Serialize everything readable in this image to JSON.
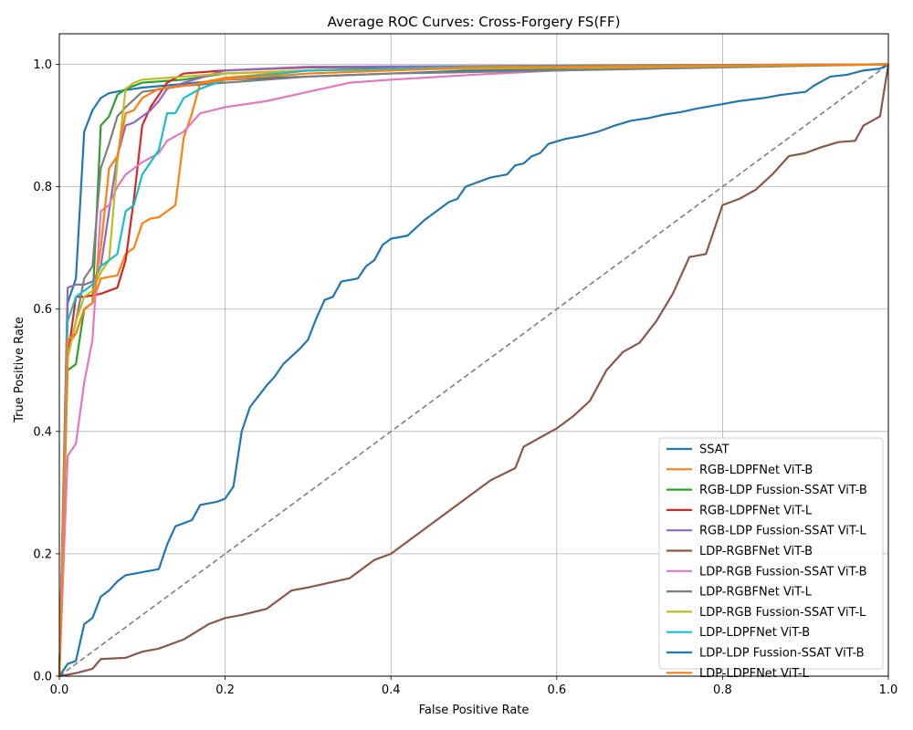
{
  "chart_data": {
    "type": "line",
    "title": "Average ROC Curves: Cross-Forgery FS(FF)",
    "xlabel": "False Positive Rate",
    "ylabel": "True Positive Rate",
    "xlim": [
      0,
      1
    ],
    "ylim": [
      0,
      1.05
    ],
    "xticks": [
      "0.0",
      "0.2",
      "0.4",
      "0.6",
      "0.8",
      "1.0"
    ],
    "yticks": [
      "0.0",
      "0.2",
      "0.4",
      "0.6",
      "0.8",
      "1.0"
    ],
    "grid": true,
    "legend_position": "bottom-right",
    "diagonal": {
      "color": "#7f7f7f",
      "style": "dashed"
    },
    "series": [
      {
        "name": "SSAT",
        "color": "#1f77b4",
        "points": [
          [
            0,
            0
          ],
          [
            0.01,
            0.61
          ],
          [
            0.02,
            0.65
          ],
          [
            0.03,
            0.89
          ],
          [
            0.04,
            0.925
          ],
          [
            0.05,
            0.945
          ],
          [
            0.06,
            0.953
          ],
          [
            0.08,
            0.958
          ],
          [
            0.1,
            0.962
          ],
          [
            0.15,
            0.968
          ],
          [
            0.2,
            0.975
          ],
          [
            0.3,
            0.98
          ],
          [
            0.4,
            0.985
          ],
          [
            0.5,
            0.99
          ],
          [
            0.6,
            0.993
          ],
          [
            0.8,
            0.997
          ],
          [
            1.0,
            1.0
          ]
        ]
      },
      {
        "name": "RGB-LDPFNet ViT-B",
        "color": "#ff7f0e",
        "points": [
          [
            0,
            0
          ],
          [
            0.01,
            0.54
          ],
          [
            0.02,
            0.56
          ],
          [
            0.03,
            0.6
          ],
          [
            0.04,
            0.61
          ],
          [
            0.05,
            0.65
          ],
          [
            0.07,
            0.655
          ],
          [
            0.08,
            0.69
          ],
          [
            0.09,
            0.7
          ],
          [
            0.1,
            0.74
          ],
          [
            0.11,
            0.748
          ],
          [
            0.12,
            0.75
          ],
          [
            0.14,
            0.77
          ],
          [
            0.15,
            0.88
          ],
          [
            0.16,
            0.92
          ],
          [
            0.17,
            0.97
          ],
          [
            0.2,
            0.978
          ],
          [
            0.3,
            0.99
          ],
          [
            0.5,
            0.997
          ],
          [
            0.7,
            0.999
          ],
          [
            1.0,
            1.0
          ]
        ]
      },
      {
        "name": "RGB-LDP Fussion-SSAT ViT-B",
        "color": "#2ca02c",
        "points": [
          [
            0,
            0
          ],
          [
            0.01,
            0.5
          ],
          [
            0.02,
            0.51
          ],
          [
            0.03,
            0.6
          ],
          [
            0.04,
            0.61
          ],
          [
            0.05,
            0.9
          ],
          [
            0.06,
            0.915
          ],
          [
            0.07,
            0.95
          ],
          [
            0.08,
            0.96
          ],
          [
            0.1,
            0.97
          ],
          [
            0.15,
            0.975
          ],
          [
            0.2,
            0.985
          ],
          [
            0.3,
            0.99
          ],
          [
            0.5,
            0.996
          ],
          [
            1.0,
            1.0
          ]
        ]
      },
      {
        "name": "RGB-LDPFNet ViT-L",
        "color": "#d62728",
        "points": [
          [
            0,
            0
          ],
          [
            0.01,
            0.52
          ],
          [
            0.02,
            0.62
          ],
          [
            0.03,
            0.62
          ],
          [
            0.05,
            0.625
          ],
          [
            0.07,
            0.635
          ],
          [
            0.08,
            0.68
          ],
          [
            0.09,
            0.78
          ],
          [
            0.1,
            0.9
          ],
          [
            0.11,
            0.93
          ],
          [
            0.12,
            0.95
          ],
          [
            0.13,
            0.97
          ],
          [
            0.15,
            0.985
          ],
          [
            0.2,
            0.99
          ],
          [
            0.3,
            0.995
          ],
          [
            1.0,
            1.0
          ]
        ]
      },
      {
        "name": "RGB-LDP Fussion-SSAT ViT-L",
        "color": "#9467bd",
        "points": [
          [
            0,
            0
          ],
          [
            0.01,
            0.635
          ],
          [
            0.02,
            0.64
          ],
          [
            0.03,
            0.64
          ],
          [
            0.04,
            0.645
          ],
          [
            0.05,
            0.67
          ],
          [
            0.07,
            0.85
          ],
          [
            0.08,
            0.9
          ],
          [
            0.09,
            0.905
          ],
          [
            0.1,
            0.915
          ],
          [
            0.11,
            0.925
          ],
          [
            0.12,
            0.94
          ],
          [
            0.13,
            0.96
          ],
          [
            0.15,
            0.97
          ],
          [
            0.2,
            0.99
          ],
          [
            0.3,
            0.996
          ],
          [
            1.0,
            1.0
          ]
        ]
      },
      {
        "name": "LDP-RGBFNet ViT-B",
        "color": "#8c564b",
        "points": [
          [
            0,
            0
          ],
          [
            0.02,
            0.005
          ],
          [
            0.04,
            0.012
          ],
          [
            0.05,
            0.028
          ],
          [
            0.08,
            0.03
          ],
          [
            0.1,
            0.04
          ],
          [
            0.12,
            0.045
          ],
          [
            0.15,
            0.06
          ],
          [
            0.18,
            0.085
          ],
          [
            0.2,
            0.095
          ],
          [
            0.22,
            0.1
          ],
          [
            0.25,
            0.11
          ],
          [
            0.28,
            0.14
          ],
          [
            0.3,
            0.145
          ],
          [
            0.35,
            0.16
          ],
          [
            0.38,
            0.19
          ],
          [
            0.4,
            0.2
          ],
          [
            0.42,
            0.22
          ],
          [
            0.45,
            0.25
          ],
          [
            0.5,
            0.3
          ],
          [
            0.52,
            0.32
          ],
          [
            0.55,
            0.34
          ],
          [
            0.56,
            0.375
          ],
          [
            0.58,
            0.39
          ],
          [
            0.6,
            0.405
          ],
          [
            0.62,
            0.425
          ],
          [
            0.64,
            0.45
          ],
          [
            0.66,
            0.5
          ],
          [
            0.68,
            0.53
          ],
          [
            0.7,
            0.545
          ],
          [
            0.72,
            0.58
          ],
          [
            0.74,
            0.625
          ],
          [
            0.76,
            0.685
          ],
          [
            0.78,
            0.69
          ],
          [
            0.8,
            0.77
          ],
          [
            0.82,
            0.78
          ],
          [
            0.84,
            0.795
          ],
          [
            0.86,
            0.82
          ],
          [
            0.88,
            0.85
          ],
          [
            0.9,
            0.855
          ],
          [
            0.92,
            0.865
          ],
          [
            0.94,
            0.873
          ],
          [
            0.96,
            0.875
          ],
          [
            0.97,
            0.9
          ],
          [
            0.99,
            0.915
          ],
          [
            1.0,
            1.0
          ]
        ]
      },
      {
        "name": "LDP-RGB Fussion-SSAT ViT-B",
        "color": "#e377c2",
        "points": [
          [
            0,
            0
          ],
          [
            0.01,
            0.36
          ],
          [
            0.02,
            0.38
          ],
          [
            0.03,
            0.48
          ],
          [
            0.04,
            0.55
          ],
          [
            0.05,
            0.76
          ],
          [
            0.06,
            0.77
          ],
          [
            0.07,
            0.8
          ],
          [
            0.08,
            0.82
          ],
          [
            0.1,
            0.84
          ],
          [
            0.12,
            0.855
          ],
          [
            0.13,
            0.875
          ],
          [
            0.15,
            0.89
          ],
          [
            0.17,
            0.92
          ],
          [
            0.2,
            0.93
          ],
          [
            0.25,
            0.94
          ],
          [
            0.3,
            0.955
          ],
          [
            0.35,
            0.97
          ],
          [
            0.4,
            0.975
          ],
          [
            0.5,
            0.983
          ],
          [
            0.6,
            0.99
          ],
          [
            0.8,
            0.996
          ],
          [
            1.0,
            1.0
          ]
        ]
      },
      {
        "name": "LDP-RGBFNet ViT-L",
        "color": "#7f7f7f",
        "points": [
          [
            0,
            0
          ],
          [
            0.01,
            0.52
          ],
          [
            0.02,
            0.58
          ],
          [
            0.03,
            0.65
          ],
          [
            0.04,
            0.67
          ],
          [
            0.05,
            0.83
          ],
          [
            0.06,
            0.87
          ],
          [
            0.07,
            0.915
          ],
          [
            0.08,
            0.93
          ],
          [
            0.1,
            0.955
          ],
          [
            0.15,
            0.965
          ],
          [
            0.2,
            0.97
          ],
          [
            0.3,
            0.98
          ],
          [
            0.4,
            0.985
          ],
          [
            0.6,
            0.99
          ],
          [
            0.8,
            0.995
          ],
          [
            1.0,
            1.0
          ]
        ]
      },
      {
        "name": "LDP-RGB Fussion-SSAT ViT-L",
        "color": "#bcbd22",
        "points": [
          [
            0,
            0
          ],
          [
            0.01,
            0.52
          ],
          [
            0.02,
            0.58
          ],
          [
            0.03,
            0.62
          ],
          [
            0.04,
            0.63
          ],
          [
            0.05,
            0.66
          ],
          [
            0.06,
            0.68
          ],
          [
            0.07,
            0.84
          ],
          [
            0.08,
            0.96
          ],
          [
            0.09,
            0.97
          ],
          [
            0.1,
            0.975
          ],
          [
            0.15,
            0.98
          ],
          [
            0.2,
            0.985
          ],
          [
            0.3,
            0.99
          ],
          [
            1.0,
            1.0
          ]
        ]
      },
      {
        "name": "LDP-LDPFNet ViT-B",
        "color": "#17becf",
        "points": [
          [
            0,
            0
          ],
          [
            0.01,
            0.58
          ],
          [
            0.02,
            0.62
          ],
          [
            0.03,
            0.63
          ],
          [
            0.04,
            0.64
          ],
          [
            0.05,
            0.67
          ],
          [
            0.06,
            0.68
          ],
          [
            0.07,
            0.69
          ],
          [
            0.08,
            0.76
          ],
          [
            0.09,
            0.77
          ],
          [
            0.1,
            0.82
          ],
          [
            0.12,
            0.86
          ],
          [
            0.13,
            0.92
          ],
          [
            0.14,
            0.92
          ],
          [
            0.15,
            0.945
          ],
          [
            0.17,
            0.96
          ],
          [
            0.2,
            0.975
          ],
          [
            0.3,
            0.99
          ],
          [
            0.5,
            0.996
          ],
          [
            1.0,
            1.0
          ]
        ]
      },
      {
        "name": "LDP-LDP Fussion-SSAT ViT-B",
        "color": "#1f77b4",
        "points": [
          [
            0,
            0
          ],
          [
            0.01,
            0.02
          ],
          [
            0.02,
            0.025
          ],
          [
            0.03,
            0.085
          ],
          [
            0.04,
            0.095
          ],
          [
            0.05,
            0.13
          ],
          [
            0.06,
            0.14
          ],
          [
            0.07,
            0.155
          ],
          [
            0.08,
            0.165
          ],
          [
            0.1,
            0.17
          ],
          [
            0.12,
            0.175
          ],
          [
            0.13,
            0.215
          ],
          [
            0.14,
            0.245
          ],
          [
            0.15,
            0.25
          ],
          [
            0.16,
            0.255
          ],
          [
            0.17,
            0.28
          ],
          [
            0.19,
            0.285
          ],
          [
            0.2,
            0.29
          ],
          [
            0.21,
            0.31
          ],
          [
            0.22,
            0.4
          ],
          [
            0.23,
            0.44
          ],
          [
            0.25,
            0.475
          ],
          [
            0.26,
            0.49
          ],
          [
            0.27,
            0.51
          ],
          [
            0.29,
            0.535
          ],
          [
            0.3,
            0.55
          ],
          [
            0.31,
            0.585
          ],
          [
            0.32,
            0.615
          ],
          [
            0.33,
            0.62
          ],
          [
            0.34,
            0.645
          ],
          [
            0.36,
            0.65
          ],
          [
            0.37,
            0.67
          ],
          [
            0.38,
            0.68
          ],
          [
            0.39,
            0.705
          ],
          [
            0.4,
            0.715
          ],
          [
            0.42,
            0.72
          ],
          [
            0.44,
            0.745
          ],
          [
            0.45,
            0.755
          ],
          [
            0.47,
            0.775
          ],
          [
            0.48,
            0.78
          ],
          [
            0.49,
            0.8
          ],
          [
            0.5,
            0.805
          ],
          [
            0.52,
            0.815
          ],
          [
            0.54,
            0.82
          ],
          [
            0.55,
            0.835
          ],
          [
            0.56,
            0.838
          ],
          [
            0.57,
            0.85
          ],
          [
            0.58,
            0.855
          ],
          [
            0.59,
            0.87
          ],
          [
            0.61,
            0.878
          ],
          [
            0.63,
            0.883
          ],
          [
            0.65,
            0.89
          ],
          [
            0.67,
            0.9
          ],
          [
            0.69,
            0.908
          ],
          [
            0.71,
            0.912
          ],
          [
            0.73,
            0.918
          ],
          [
            0.75,
            0.922
          ],
          [
            0.77,
            0.928
          ],
          [
            0.8,
            0.935
          ],
          [
            0.82,
            0.94
          ],
          [
            0.85,
            0.945
          ],
          [
            0.87,
            0.95
          ],
          [
            0.9,
            0.955
          ],
          [
            0.91,
            0.965
          ],
          [
            0.93,
            0.98
          ],
          [
            0.95,
            0.983
          ],
          [
            0.97,
            0.99
          ],
          [
            0.99,
            0.993
          ],
          [
            1.0,
            1.0
          ]
        ]
      },
      {
        "name": "LDP-LDPFNet ViT-L",
        "color": "#ff7f0e",
        "points": [
          [
            0,
            0
          ],
          [
            0.01,
            0.55
          ],
          [
            0.02,
            0.56
          ],
          [
            0.03,
            0.6
          ],
          [
            0.04,
            0.61
          ],
          [
            0.05,
            0.7
          ],
          [
            0.06,
            0.83
          ],
          [
            0.07,
            0.85
          ],
          [
            0.08,
            0.92
          ],
          [
            0.09,
            0.925
          ],
          [
            0.1,
            0.945
          ],
          [
            0.12,
            0.96
          ],
          [
            0.15,
            0.965
          ],
          [
            0.2,
            0.975
          ],
          [
            0.3,
            0.985
          ],
          [
            0.5,
            0.995
          ],
          [
            1.0,
            1.0
          ]
        ]
      }
    ]
  }
}
